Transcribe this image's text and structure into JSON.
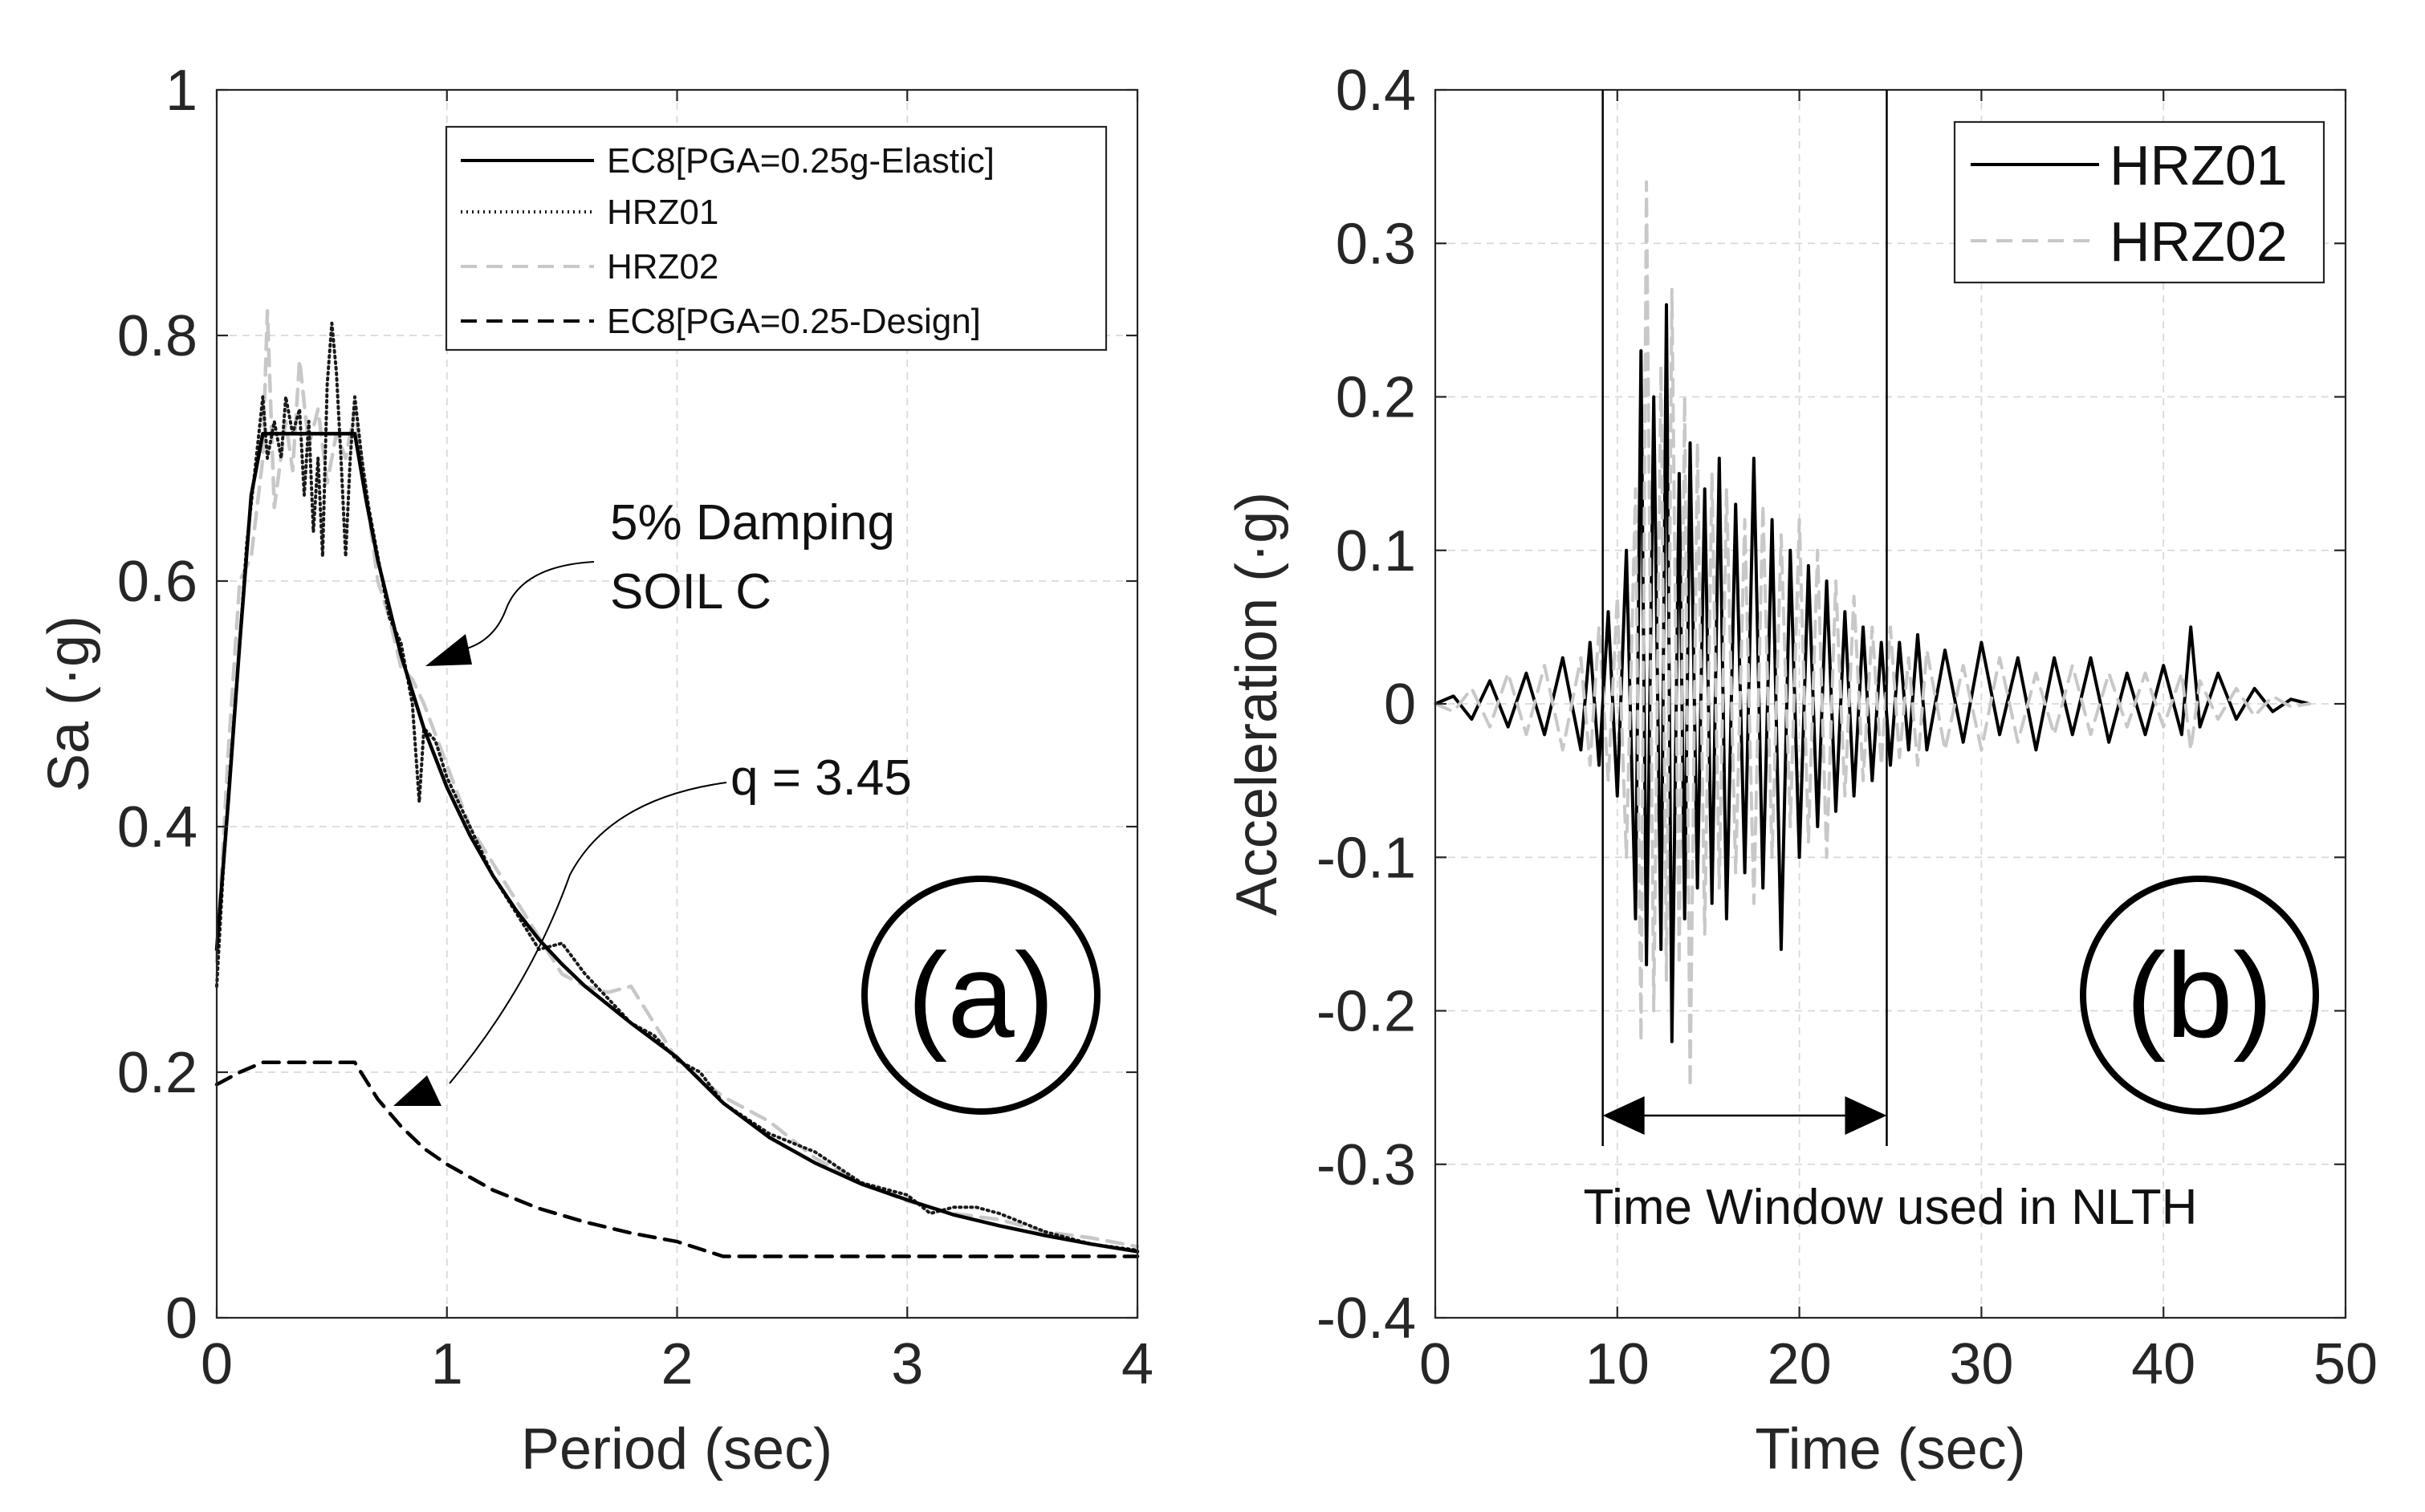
{
  "chart_data": [
    {
      "type": "line",
      "panel_label": "(a)",
      "xlabel": "Period (sec)",
      "ylabel": "Sa (·g)",
      "xlim": [
        0,
        4
      ],
      "ylim": [
        0,
        1
      ],
      "xticks": [
        0,
        1,
        2,
        3,
        4
      ],
      "yticks": [
        0,
        0.2,
        0.4,
        0.6,
        0.8,
        1
      ],
      "xtick_labels": [
        "0",
        "1",
        "2",
        "3",
        "4"
      ],
      "ytick_labels": [
        "0",
        "0.2",
        "0.4",
        "0.6",
        "0.8",
        "1"
      ],
      "grid": true,
      "legend_location": "top-right",
      "legend": [
        "EC8[PGA=0.25g-Elastic]",
        "HRZ01",
        "HRZ02",
        "EC8[PGA=0.25-Design]"
      ],
      "annotations": [
        {
          "text_lines": [
            "5% Damping",
            "SOIL C"
          ],
          "x": 1.7,
          "y": 0.645,
          "points_to": [
            0.9,
            0.53
          ]
        },
        {
          "text_lines": [
            "q = 3.45"
          ],
          "x": 2.3,
          "y": 0.445,
          "points_to": [
            0.75,
            0.175
          ]
        }
      ],
      "series": [
        {
          "name": "EC8[PGA=0.25g-Elastic]",
          "style": "solid",
          "color": "#000000",
          "x": [
            0,
            0.05,
            0.1,
            0.15,
            0.2,
            0.3,
            0.4,
            0.5,
            0.6,
            0.65,
            0.7,
            0.8,
            0.9,
            1.0,
            1.1,
            1.2,
            1.3,
            1.4,
            1.5,
            1.6,
            1.8,
            2.0,
            2.2,
            2.4,
            2.6,
            2.8,
            3.0,
            3.2,
            3.4,
            3.6,
            3.8,
            4.0
          ],
          "values": [
            0.3,
            0.42,
            0.55,
            0.67,
            0.72,
            0.72,
            0.72,
            0.72,
            0.72,
            0.665,
            0.617,
            0.54,
            0.48,
            0.432,
            0.393,
            0.36,
            0.332,
            0.308,
            0.288,
            0.27,
            0.24,
            0.212,
            0.175,
            0.147,
            0.126,
            0.109,
            0.096,
            0.084,
            0.075,
            0.067,
            0.06,
            0.054
          ]
        },
        {
          "name": "HRZ01",
          "style": "dotted",
          "color": "#1a1a1a",
          "x": [
            0,
            0.03,
            0.06,
            0.1,
            0.13,
            0.16,
            0.2,
            0.22,
            0.25,
            0.28,
            0.3,
            0.33,
            0.36,
            0.38,
            0.4,
            0.42,
            0.44,
            0.46,
            0.48,
            0.5,
            0.52,
            0.54,
            0.56,
            0.58,
            0.6,
            0.63,
            0.66,
            0.7,
            0.75,
            0.8,
            0.85,
            0.88,
            0.9,
            0.95,
            1.0,
            1.1,
            1.2,
            1.3,
            1.4,
            1.5,
            1.6,
            1.7,
            1.8,
            1.9,
            2.0,
            2.1,
            2.2,
            2.4,
            2.6,
            2.8,
            3.0,
            3.1,
            3.2,
            3.3,
            3.4,
            3.6,
            3.8,
            4.0
          ],
          "values": [
            0.27,
            0.37,
            0.45,
            0.55,
            0.63,
            0.68,
            0.75,
            0.7,
            0.73,
            0.7,
            0.75,
            0.72,
            0.74,
            0.67,
            0.73,
            0.64,
            0.7,
            0.62,
            0.76,
            0.81,
            0.77,
            0.7,
            0.62,
            0.7,
            0.75,
            0.7,
            0.66,
            0.62,
            0.57,
            0.55,
            0.5,
            0.42,
            0.48,
            0.47,
            0.44,
            0.4,
            0.36,
            0.33,
            0.3,
            0.305,
            0.28,
            0.26,
            0.24,
            0.23,
            0.21,
            0.2,
            0.175,
            0.15,
            0.135,
            0.11,
            0.1,
            0.085,
            0.09,
            0.09,
            0.085,
            0.07,
            0.06,
            0.055
          ]
        },
        {
          "name": "HRZ02",
          "style": "dashed",
          "color": "#c8c8c8",
          "x": [
            0,
            0.05,
            0.1,
            0.15,
            0.2,
            0.22,
            0.25,
            0.3,
            0.33,
            0.36,
            0.4,
            0.44,
            0.48,
            0.52,
            0.56,
            0.6,
            0.65,
            0.7,
            0.75,
            0.8,
            0.85,
            0.9,
            1.0,
            1.1,
            1.2,
            1.3,
            1.4,
            1.5,
            1.6,
            1.7,
            1.8,
            1.9,
            2.0,
            2.2,
            2.4,
            2.6,
            2.8,
            3.0,
            3.2,
            3.4,
            3.6,
            3.8,
            4.0
          ],
          "values": [
            0.29,
            0.46,
            0.6,
            0.62,
            0.7,
            0.82,
            0.66,
            0.73,
            0.69,
            0.78,
            0.71,
            0.74,
            0.68,
            0.72,
            0.7,
            0.74,
            0.67,
            0.6,
            0.57,
            0.53,
            0.52,
            0.5,
            0.45,
            0.4,
            0.37,
            0.34,
            0.31,
            0.28,
            0.27,
            0.265,
            0.27,
            0.24,
            0.21,
            0.18,
            0.16,
            0.13,
            0.11,
            0.095,
            0.085,
            0.08,
            0.07,
            0.065,
            0.058
          ]
        },
        {
          "name": "EC8[PGA=0.25-Design]",
          "style": "dashed",
          "color": "#000000",
          "x": [
            0,
            0.1,
            0.2,
            0.3,
            0.4,
            0.5,
            0.6,
            0.7,
            0.8,
            0.9,
            1.0,
            1.2,
            1.4,
            1.6,
            1.8,
            2.0,
            2.2,
            2.4,
            2.6,
            2.8,
            3.0,
            3.2,
            3.4,
            3.6,
            3.8,
            4.0
          ],
          "values": [
            0.19,
            0.2,
            0.208,
            0.208,
            0.208,
            0.208,
            0.208,
            0.178,
            0.156,
            0.138,
            0.125,
            0.104,
            0.089,
            0.078,
            0.069,
            0.062,
            0.05,
            0.05,
            0.05,
            0.05,
            0.05,
            0.05,
            0.05,
            0.05,
            0.05,
            0.05
          ]
        }
      ]
    },
    {
      "type": "line",
      "panel_label": "(b)",
      "xlabel": "Time (sec)",
      "ylabel": "Acceleration (·g)",
      "xlim": [
        0,
        50
      ],
      "ylim": [
        -0.4,
        0.4
      ],
      "xticks": [
        0,
        10,
        20,
        30,
        40,
        50
      ],
      "yticks": [
        -0.4,
        -0.3,
        -0.2,
        -0.1,
        0,
        0.1,
        0.2,
        0.3,
        0.4
      ],
      "xtick_labels": [
        "0",
        "10",
        "20",
        "30",
        "40",
        "50"
      ],
      "ytick_labels": [
        "-0.4",
        "-0.3",
        "-0.2",
        "-0.1",
        "0",
        "0.1",
        "0.2",
        "0.3",
        "0.4"
      ],
      "grid": true,
      "legend_location": "top-right",
      "legend": [
        "HRZ01",
        "HRZ02"
      ],
      "time_window": {
        "start": 9.2,
        "end": 24.8,
        "label": "Time Window used in NLTH"
      },
      "series": [
        {
          "name": "HRZ01",
          "style": "solid",
          "color": "#000000",
          "x": [
            0,
            1,
            2,
            3,
            4,
            5,
            6,
            7,
            8,
            8.5,
            9,
            9.5,
            10,
            10.5,
            11,
            11.3,
            11.6,
            12,
            12.4,
            12.7,
            13,
            13.4,
            13.7,
            14,
            14.4,
            14.8,
            15.2,
            15.6,
            16,
            16.5,
            17,
            17.5,
            18,
            18.5,
            19,
            19.5,
            20,
            20.5,
            21,
            21.5,
            22,
            22.5,
            23,
            23.5,
            24,
            24.5,
            25,
            25.5,
            26,
            26.5,
            27,
            28,
            29,
            30,
            31,
            32,
            33,
            34,
            35,
            36,
            37,
            38,
            39,
            40,
            41,
            41.5,
            42,
            43,
            44,
            45,
            46,
            47,
            48
          ],
          "values": [
            0,
            0.005,
            -0.01,
            0.015,
            -0.015,
            0.02,
            -0.02,
            0.03,
            -0.03,
            0.04,
            -0.04,
            0.06,
            -0.06,
            0.1,
            -0.14,
            0.23,
            -0.17,
            0.2,
            -0.16,
            0.26,
            -0.22,
            0.15,
            -0.14,
            0.17,
            -0.12,
            0.14,
            -0.13,
            0.16,
            -0.14,
            0.13,
            -0.11,
            0.16,
            -0.12,
            0.12,
            -0.16,
            0.1,
            -0.1,
            0.09,
            -0.08,
            0.08,
            -0.07,
            0.06,
            -0.06,
            0.05,
            -0.05,
            0.04,
            -0.04,
            0.04,
            -0.03,
            0.045,
            -0.03,
            0.035,
            -0.025,
            0.04,
            -0.02,
            0.03,
            -0.03,
            0.03,
            -0.02,
            0.03,
            -0.025,
            0.02,
            -0.02,
            0.025,
            -0.02,
            0.05,
            -0.015,
            0.02,
            -0.01,
            0.01,
            -0.005,
            0.003,
            0
          ]
        },
        {
          "name": "HRZ02",
          "style": "dashed",
          "color": "#c8c8c8",
          "x": [
            0,
            1,
            2,
            3,
            4,
            5,
            6,
            7,
            8,
            8.5,
            9,
            9.5,
            10,
            10.5,
            11,
            11.3,
            11.6,
            12,
            12.4,
            12.7,
            13,
            13.4,
            13.7,
            14,
            14.4,
            14.8,
            15.2,
            15.6,
            16,
            16.5,
            17,
            17.5,
            18,
            18.5,
            19,
            19.5,
            20,
            20.5,
            21,
            21.5,
            22,
            22.5,
            23,
            23.5,
            24,
            24.5,
            25,
            25.5,
            26,
            26.5,
            27,
            28,
            29,
            30,
            31,
            32,
            33,
            34,
            35,
            36,
            37,
            38,
            39,
            40,
            41,
            41.5,
            42,
            43,
            44,
            45,
            46,
            47,
            48
          ],
          "values": [
            0,
            -0.005,
            0.01,
            -0.015,
            0.02,
            -0.02,
            0.025,
            -0.03,
            0.03,
            -0.04,
            0.05,
            -0.05,
            0.07,
            -0.1,
            0.14,
            -0.22,
            0.34,
            -0.2,
            0.22,
            -0.18,
            0.27,
            -0.17,
            0.2,
            -0.25,
            0.17,
            -0.15,
            0.15,
            -0.12,
            0.14,
            -0.11,
            0.12,
            -0.13,
            0.13,
            -0.1,
            0.11,
            -0.08,
            0.12,
            -0.09,
            0.1,
            -0.1,
            0.08,
            -0.06,
            0.07,
            -0.05,
            0.05,
            -0.04,
            0.05,
            -0.035,
            0.03,
            -0.04,
            0.035,
            -0.03,
            0.025,
            -0.03,
            0.03,
            -0.025,
            0.02,
            -0.02,
            0.025,
            -0.02,
            0.02,
            -0.015,
            0.02,
            -0.015,
            0.02,
            -0.03,
            0.015,
            -0.01,
            0.01,
            -0.008,
            0.005,
            -0.002,
            0
          ]
        }
      ]
    }
  ]
}
